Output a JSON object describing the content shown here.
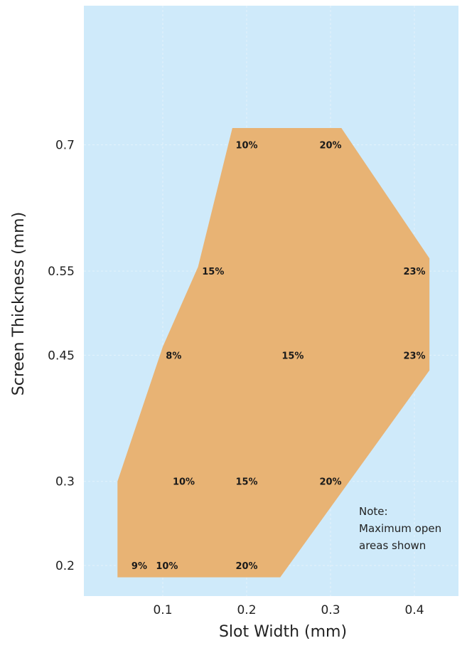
{
  "chart_data": {
    "type": "area",
    "xlabel": "Slot Width (mm)",
    "ylabel": "Screen Thickness (mm)",
    "x_ticks": [
      {
        "value": 0.1,
        "label": "0.1"
      },
      {
        "value": 0.2,
        "label": "0.2"
      },
      {
        "value": 0.3,
        "label": "0.3"
      },
      {
        "value": 0.4,
        "label": "0.4"
      }
    ],
    "y_ticks": [
      {
        "value": 0.2,
        "label": "0.2"
      },
      {
        "value": 0.3,
        "label": "0.3"
      },
      {
        "value": 0.45,
        "label": "0.45"
      },
      {
        "value": 0.55,
        "label": "0.55"
      },
      {
        "value": 0.7,
        "label": "0.7"
      }
    ],
    "grid": true,
    "colors": {
      "plot_background": "#cfeafa",
      "region_fill": "#e8b374",
      "grid": "#e4f3fb"
    },
    "region": [
      {
        "x": 0.046,
        "y": 0.186
      },
      {
        "x": 0.046,
        "y": 0.3
      },
      {
        "x": 0.1,
        "y": 0.46
      },
      {
        "x": 0.142,
        "y": 0.555
      },
      {
        "x": 0.183,
        "y": 0.72
      },
      {
        "x": 0.313,
        "y": 0.72
      },
      {
        "x": 0.418,
        "y": 0.565
      },
      {
        "x": 0.418,
        "y": 0.432
      },
      {
        "x": 0.24,
        "y": 0.186
      }
    ],
    "point_labels": [
      {
        "x": 0.2,
        "y": 0.7,
        "text": "10%"
      },
      {
        "x": 0.3,
        "y": 0.7,
        "text": "20%"
      },
      {
        "x": 0.16,
        "y": 0.55,
        "text": "15%"
      },
      {
        "x": 0.4,
        "y": 0.55,
        "text": "23%"
      },
      {
        "x": 0.113,
        "y": 0.45,
        "text": "8%"
      },
      {
        "x": 0.255,
        "y": 0.45,
        "text": "15%"
      },
      {
        "x": 0.4,
        "y": 0.45,
        "text": "23%"
      },
      {
        "x": 0.125,
        "y": 0.3,
        "text": "10%"
      },
      {
        "x": 0.2,
        "y": 0.3,
        "text": "15%"
      },
      {
        "x": 0.3,
        "y": 0.3,
        "text": "20%"
      },
      {
        "x": 0.072,
        "y": 0.2,
        "text": "9%"
      },
      {
        "x": 0.105,
        "y": 0.2,
        "text": "10%"
      },
      {
        "x": 0.2,
        "y": 0.2,
        "text": "20%"
      }
    ],
    "annotation": [
      "Note:",
      "Maximum open",
      "areas shown"
    ]
  }
}
